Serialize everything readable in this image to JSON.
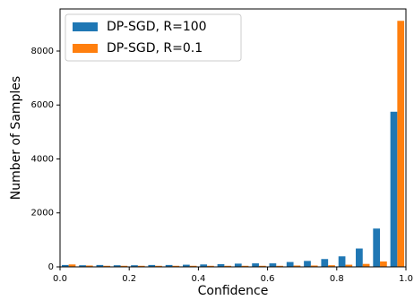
{
  "chart_data": {
    "type": "histogram",
    "x_label": "Confidence",
    "y_label": "Number of Samples",
    "bins": [
      0,
      0.05,
      0.1,
      0.15,
      0.2,
      0.25,
      0.3,
      0.35,
      0.4,
      0.45,
      0.5,
      0.55,
      0.6,
      0.65,
      0.7,
      0.75,
      0.8,
      0.85,
      0.9,
      0.95,
      1
    ],
    "series": [
      {
        "name": "DP-SGD, R=100",
        "color": "#1f77b4",
        "values": [
          70,
          60,
          70,
          60,
          60,
          70,
          70,
          80,
          90,
          100,
          120,
          130,
          130,
          180,
          220,
          290,
          390,
          680,
          1420,
          5750
        ]
      },
      {
        "name": "DP-SGD, R=0.1",
        "color": "#ff7f0e",
        "values": [
          90,
          50,
          40,
          40,
          40,
          40,
          40,
          40,
          40,
          40,
          40,
          40,
          40,
          50,
          50,
          60,
          80,
          110,
          200,
          9120
        ]
      }
    ],
    "xlim": [
      0,
      1
    ],
    "ylim": [
      0,
      9560
    ],
    "xticks": [
      {
        "value": 0,
        "label": "0.0"
      },
      0.2,
      0.4,
      0.6,
      0.8,
      {
        "value": 1,
        "label": "1.0"
      }
    ],
    "yticks": [
      0,
      2000,
      4000,
      6000,
      8000
    ],
    "legend": "upper left"
  }
}
